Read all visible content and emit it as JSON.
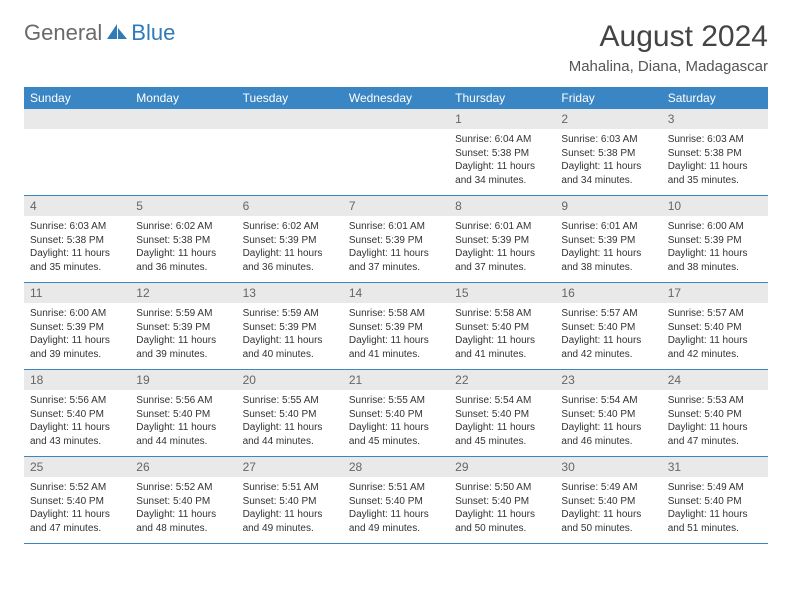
{
  "logo": {
    "general": "General",
    "blue": "Blue"
  },
  "title": "August 2024",
  "location": "Mahalina, Diana, Madagascar",
  "colors": {
    "header_bg": "#3a85c4",
    "header_text": "#ffffff",
    "daynum_bg": "#e9e9e9",
    "daynum_text": "#666666",
    "logo_gray": "#6a6a6a",
    "logo_blue": "#2f7ab9",
    "body_text": "#333333",
    "page_bg": "#ffffff",
    "row_border": "#3a85c4"
  },
  "fonts": {
    "title_size": 30,
    "location_size": 15,
    "weekday_size": 12,
    "daynum_size": 12,
    "body_size": 10,
    "logo_size": 22
  },
  "weekdays": [
    "Sunday",
    "Monday",
    "Tuesday",
    "Wednesday",
    "Thursday",
    "Friday",
    "Saturday"
  ],
  "weeks": [
    [
      null,
      null,
      null,
      null,
      {
        "n": "1",
        "sr": "6:04 AM",
        "ss": "5:38 PM",
        "dl": "11 hours and 34 minutes."
      },
      {
        "n": "2",
        "sr": "6:03 AM",
        "ss": "5:38 PM",
        "dl": "11 hours and 34 minutes."
      },
      {
        "n": "3",
        "sr": "6:03 AM",
        "ss": "5:38 PM",
        "dl": "11 hours and 35 minutes."
      }
    ],
    [
      {
        "n": "4",
        "sr": "6:03 AM",
        "ss": "5:38 PM",
        "dl": "11 hours and 35 minutes."
      },
      {
        "n": "5",
        "sr": "6:02 AM",
        "ss": "5:38 PM",
        "dl": "11 hours and 36 minutes."
      },
      {
        "n": "6",
        "sr": "6:02 AM",
        "ss": "5:39 PM",
        "dl": "11 hours and 36 minutes."
      },
      {
        "n": "7",
        "sr": "6:01 AM",
        "ss": "5:39 PM",
        "dl": "11 hours and 37 minutes."
      },
      {
        "n": "8",
        "sr": "6:01 AM",
        "ss": "5:39 PM",
        "dl": "11 hours and 37 minutes."
      },
      {
        "n": "9",
        "sr": "6:01 AM",
        "ss": "5:39 PM",
        "dl": "11 hours and 38 minutes."
      },
      {
        "n": "10",
        "sr": "6:00 AM",
        "ss": "5:39 PM",
        "dl": "11 hours and 38 minutes."
      }
    ],
    [
      {
        "n": "11",
        "sr": "6:00 AM",
        "ss": "5:39 PM",
        "dl": "11 hours and 39 minutes."
      },
      {
        "n": "12",
        "sr": "5:59 AM",
        "ss": "5:39 PM",
        "dl": "11 hours and 39 minutes."
      },
      {
        "n": "13",
        "sr": "5:59 AM",
        "ss": "5:39 PM",
        "dl": "11 hours and 40 minutes."
      },
      {
        "n": "14",
        "sr": "5:58 AM",
        "ss": "5:39 PM",
        "dl": "11 hours and 41 minutes."
      },
      {
        "n": "15",
        "sr": "5:58 AM",
        "ss": "5:40 PM",
        "dl": "11 hours and 41 minutes."
      },
      {
        "n": "16",
        "sr": "5:57 AM",
        "ss": "5:40 PM",
        "dl": "11 hours and 42 minutes."
      },
      {
        "n": "17",
        "sr": "5:57 AM",
        "ss": "5:40 PM",
        "dl": "11 hours and 42 minutes."
      }
    ],
    [
      {
        "n": "18",
        "sr": "5:56 AM",
        "ss": "5:40 PM",
        "dl": "11 hours and 43 minutes."
      },
      {
        "n": "19",
        "sr": "5:56 AM",
        "ss": "5:40 PM",
        "dl": "11 hours and 44 minutes."
      },
      {
        "n": "20",
        "sr": "5:55 AM",
        "ss": "5:40 PM",
        "dl": "11 hours and 44 minutes."
      },
      {
        "n": "21",
        "sr": "5:55 AM",
        "ss": "5:40 PM",
        "dl": "11 hours and 45 minutes."
      },
      {
        "n": "22",
        "sr": "5:54 AM",
        "ss": "5:40 PM",
        "dl": "11 hours and 45 minutes."
      },
      {
        "n": "23",
        "sr": "5:54 AM",
        "ss": "5:40 PM",
        "dl": "11 hours and 46 minutes."
      },
      {
        "n": "24",
        "sr": "5:53 AM",
        "ss": "5:40 PM",
        "dl": "11 hours and 47 minutes."
      }
    ],
    [
      {
        "n": "25",
        "sr": "5:52 AM",
        "ss": "5:40 PM",
        "dl": "11 hours and 47 minutes."
      },
      {
        "n": "26",
        "sr": "5:52 AM",
        "ss": "5:40 PM",
        "dl": "11 hours and 48 minutes."
      },
      {
        "n": "27",
        "sr": "5:51 AM",
        "ss": "5:40 PM",
        "dl": "11 hours and 49 minutes."
      },
      {
        "n": "28",
        "sr": "5:51 AM",
        "ss": "5:40 PM",
        "dl": "11 hours and 49 minutes."
      },
      {
        "n": "29",
        "sr": "5:50 AM",
        "ss": "5:40 PM",
        "dl": "11 hours and 50 minutes."
      },
      {
        "n": "30",
        "sr": "5:49 AM",
        "ss": "5:40 PM",
        "dl": "11 hours and 50 minutes."
      },
      {
        "n": "31",
        "sr": "5:49 AM",
        "ss": "5:40 PM",
        "dl": "11 hours and 51 minutes."
      }
    ]
  ],
  "labels": {
    "sunrise": "Sunrise: ",
    "sunset": "Sunset: ",
    "daylight": "Daylight: "
  }
}
